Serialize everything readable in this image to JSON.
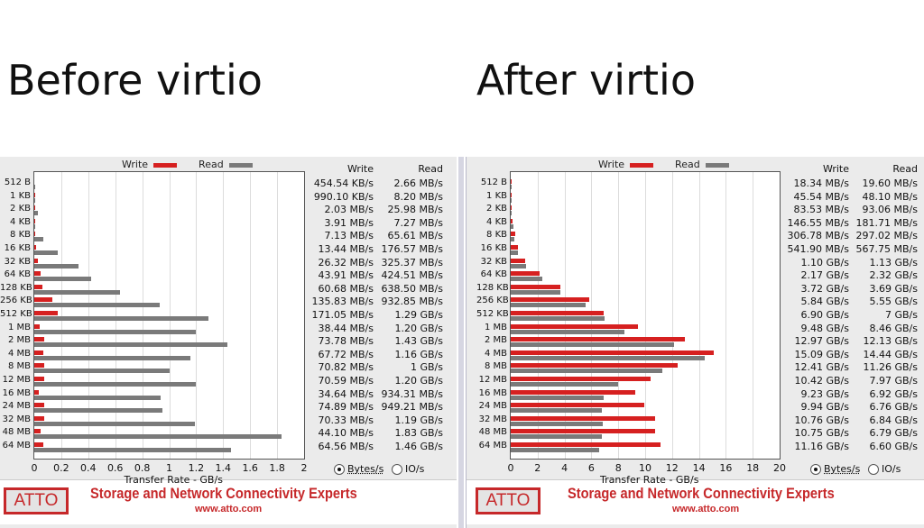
{
  "headings": {
    "left": "Before virtio",
    "right": "After virtio"
  },
  "legend": {
    "write": "Write",
    "read": "Read"
  },
  "colors": {
    "write": "#d62020",
    "read": "#7a7a7a",
    "brand": "#c6282a"
  },
  "columns": {
    "write": "Write",
    "read": "Read"
  },
  "x_title": "Transfer Rate - GB/s",
  "radio": {
    "bytes": "Bytes/s",
    "io": "IO/s",
    "selected": "Bytes/s"
  },
  "footer": {
    "logo": "ATTO",
    "tagline": "Storage and Network Connectivity Experts",
    "url": "www.atto.com"
  },
  "chart_data": [
    {
      "type": "bar",
      "orientation": "horizontal",
      "categories": [
        "512 B",
        "1 KB",
        "2 KB",
        "4 KB",
        "8 KB",
        "16 KB",
        "32 KB",
        "64 KB",
        "128 KB",
        "256 KB",
        "512 KB",
        "1 MB",
        "2 MB",
        "4 MB",
        "8 MB",
        "12 MB",
        "16 MB",
        "24 MB",
        "32 MB",
        "48 MB",
        "64 MB"
      ],
      "xlim": [
        0,
        2
      ],
      "xticks": [
        "0",
        "0.2",
        "0.4",
        "0.6",
        "0.8",
        "1",
        "1.2",
        "1.4",
        "1.6",
        "1.8",
        "2"
      ],
      "xlabel": "Transfer Rate - GB/s",
      "grid": true,
      "legend_position": "top",
      "series": [
        {
          "name": "Write",
          "values": [
            0.00045,
            0.00099,
            0.002,
            0.0039,
            0.0071,
            0.0134,
            0.0263,
            0.0439,
            0.0607,
            0.1358,
            0.171,
            0.0384,
            0.0738,
            0.0677,
            0.0708,
            0.0706,
            0.0346,
            0.0749,
            0.0703,
            0.0441,
            0.0646
          ],
          "labels": [
            "454.54 KB/s",
            "990.10 KB/s",
            "2.03 MB/s",
            "3.91 MB/s",
            "7.13 MB/s",
            "13.44 MB/s",
            "26.32 MB/s",
            "43.91 MB/s",
            "60.68 MB/s",
            "135.83 MB/s",
            "171.05 MB/s",
            "38.44 MB/s",
            "73.78 MB/s",
            "67.72 MB/s",
            "70.82 MB/s",
            "70.59 MB/s",
            "34.64 MB/s",
            "74.89 MB/s",
            "70.33 MB/s",
            "44.10 MB/s",
            "64.56 MB/s"
          ]
        },
        {
          "name": "Read",
          "values": [
            0.0027,
            0.0082,
            0.026,
            0.0073,
            0.0656,
            0.1766,
            0.3254,
            0.4245,
            0.6385,
            0.9329,
            1.29,
            1.2,
            1.43,
            1.16,
            1.0,
            1.2,
            0.9343,
            0.9492,
            1.19,
            1.83,
            1.46
          ],
          "labels": [
            "2.66 MB/s",
            "8.20 MB/s",
            "25.98 MB/s",
            "7.27 MB/s",
            "65.61 MB/s",
            "176.57 MB/s",
            "325.37 MB/s",
            "424.51 MB/s",
            "638.50 MB/s",
            "932.85 MB/s",
            "1.29 GB/s",
            "1.20 GB/s",
            "1.43 GB/s",
            "1.16 GB/s",
            "1 GB/s",
            "1.20 GB/s",
            "934.31 MB/s",
            "949.21 MB/s",
            "1.19 GB/s",
            "1.83 GB/s",
            "1.46 GB/s"
          ]
        }
      ]
    },
    {
      "type": "bar",
      "orientation": "horizontal",
      "categories": [
        "512 B",
        "1 KB",
        "2 KB",
        "4 KB",
        "8 KB",
        "16 KB",
        "32 KB",
        "64 KB",
        "128 KB",
        "256 KB",
        "512 KB",
        "1 MB",
        "2 MB",
        "4 MB",
        "8 MB",
        "12 MB",
        "16 MB",
        "24 MB",
        "32 MB",
        "48 MB",
        "64 MB"
      ],
      "xlim": [
        0,
        20
      ],
      "xticks": [
        "0",
        "2",
        "4",
        "6",
        "8",
        "10",
        "12",
        "14",
        "16",
        "18",
        "20"
      ],
      "xlabel": "Transfer Rate - GB/s",
      "grid": true,
      "legend_position": "top",
      "series": [
        {
          "name": "Write",
          "values": [
            0.0183,
            0.0455,
            0.0835,
            0.1466,
            0.3068,
            0.5419,
            1.1,
            2.17,
            3.72,
            5.84,
            6.9,
            9.48,
            12.97,
            15.09,
            12.41,
            10.42,
            9.23,
            9.94,
            10.76,
            10.75,
            11.16
          ],
          "labels": [
            "18.34 MB/s",
            "45.54 MB/s",
            "83.53 MB/s",
            "146.55 MB/s",
            "306.78 MB/s",
            "541.90 MB/s",
            "1.10 GB/s",
            "2.17 GB/s",
            "3.72 GB/s",
            "5.84 GB/s",
            "6.90 GB/s",
            "9.48 GB/s",
            "12.97 GB/s",
            "15.09 GB/s",
            "12.41 GB/s",
            "10.42 GB/s",
            "9.23 GB/s",
            "9.94 GB/s",
            "10.76 GB/s",
            "10.75 GB/s",
            "11.16 GB/s"
          ]
        },
        {
          "name": "Read",
          "values": [
            0.0196,
            0.0481,
            0.0931,
            0.1817,
            0.297,
            0.5678,
            1.13,
            2.32,
            3.69,
            5.55,
            7.0,
            8.46,
            12.13,
            14.44,
            11.26,
            7.97,
            6.92,
            6.76,
            6.84,
            6.79,
            6.6
          ],
          "labels": [
            "19.60 MB/s",
            "48.10 MB/s",
            "93.06 MB/s",
            "181.71 MB/s",
            "297.02 MB/s",
            "567.75 MB/s",
            "1.13 GB/s",
            "2.32 GB/s",
            "3.69 GB/s",
            "5.55 GB/s",
            "7 GB/s",
            "8.46 GB/s",
            "12.13 GB/s",
            "14.44 GB/s",
            "11.26 GB/s",
            "7.97 GB/s",
            "6.92 GB/s",
            "6.76 GB/s",
            "6.84 GB/s",
            "6.79 GB/s",
            "6.60 GB/s"
          ]
        }
      ]
    }
  ]
}
